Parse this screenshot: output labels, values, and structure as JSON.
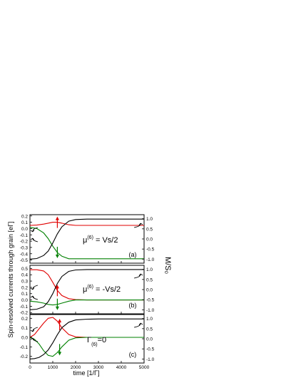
{
  "figure": {
    "ylabel_left": "Spin-resolved currents through grain [eΓ]",
    "ylabel_right": "M/S₀",
    "xlabel": "time [1/Γ]"
  },
  "colors": {
    "up": "#e00000",
    "down": "#008000",
    "magnet": "#000000"
  },
  "chart_data": [
    {
      "type": "line",
      "panel_label": "(a)",
      "annotation": {
        "base": "μ",
        "sup": "(6)",
        "rest": " = Vs/2"
      },
      "xlim": [
        0,
        5000
      ],
      "ylim": [
        -0.55,
        0.22
      ],
      "y2lim": [
        -1.2,
        1.2
      ],
      "xticks": [
        0,
        1000,
        2000,
        3000,
        4000,
        5000
      ],
      "yticks": [
        0.2,
        0.1,
        0.0,
        -0.1,
        -0.2,
        -0.3,
        -0.4,
        -0.5
      ],
      "y2ticks": [
        1.0,
        0.5,
        0.0,
        -0.5,
        -1.0
      ],
      "series": [
        {
          "color_key": "up",
          "axis": "left",
          "x": [
            0,
            300,
            600,
            800,
            1000,
            1200,
            1400,
            1700,
            2000,
            2500,
            5000
          ],
          "y": [
            0.05,
            0.055,
            0.07,
            0.085,
            0.1,
            0.1,
            0.085,
            0.06,
            0.05,
            0.05,
            0.05
          ]
        },
        {
          "color_key": "down",
          "axis": "left",
          "x": [
            0,
            300,
            600,
            800,
            1000,
            1200,
            1400,
            1700,
            2000,
            2500,
            5000
          ],
          "y": [
            0.02,
            0.0,
            -0.07,
            -0.16,
            -0.28,
            -0.38,
            -0.44,
            -0.48,
            -0.48,
            -0.48,
            -0.48
          ]
        },
        {
          "color_key": "magnet",
          "axis": "right",
          "x": [
            0,
            300,
            600,
            800,
            1000,
            1200,
            1400,
            1700,
            2000,
            2500,
            3000,
            5000
          ],
          "y": [
            -1.0,
            -0.97,
            -0.82,
            -0.6,
            -0.2,
            0.25,
            0.6,
            0.88,
            0.96,
            0.98,
            0.98,
            0.98
          ]
        }
      ]
    },
    {
      "type": "line",
      "panel_label": "(b)",
      "annotation": {
        "base": "μ",
        "sup": "(6)",
        "rest": " = -Vs/2"
      },
      "xlim": [
        0,
        5000
      ],
      "ylim": [
        -0.22,
        0.55
      ],
      "y2lim": [
        -1.2,
        1.2
      ],
      "xticks": [
        0,
        1000,
        2000,
        3000,
        4000,
        5000
      ],
      "yticks": [
        0.5,
        0.4,
        0.3,
        0.2,
        0.1,
        0.0,
        -0.1,
        -0.2
      ],
      "y2ticks": [
        1.0,
        0.5,
        0.0,
        -0.5,
        -1.0
      ],
      "series": [
        {
          "color_key": "up",
          "axis": "left",
          "x": [
            0,
            300,
            600,
            800,
            1000,
            1200,
            1400,
            1700,
            2000,
            2500,
            5000
          ],
          "y": [
            0.48,
            0.48,
            0.46,
            0.4,
            0.28,
            0.15,
            0.07,
            0.02,
            0.005,
            0.0,
            0.0
          ]
        },
        {
          "color_key": "down",
          "axis": "left",
          "x": [
            0,
            300,
            600,
            800,
            1000,
            1200,
            1400,
            1700,
            2000,
            2500,
            5000
          ],
          "y": [
            -0.02,
            -0.03,
            -0.05,
            -0.07,
            -0.08,
            -0.07,
            -0.05,
            -0.02,
            0.0,
            0.0,
            0.0
          ]
        },
        {
          "color_key": "magnet",
          "axis": "right",
          "x": [
            0,
            300,
            600,
            800,
            1000,
            1200,
            1400,
            1700,
            2000,
            2500,
            3000,
            5000
          ],
          "y": [
            -1.0,
            -0.97,
            -0.85,
            -0.6,
            -0.2,
            0.3,
            0.65,
            0.9,
            0.97,
            0.99,
            0.99,
            0.99
          ]
        }
      ]
    },
    {
      "type": "line",
      "panel_label": "(c)",
      "annotation": {
        "base": "Γ",
        "sub": "(6)",
        "rest": "=0"
      },
      "xlim": [
        0,
        5000
      ],
      "ylim": [
        -0.27,
        0.24
      ],
      "y2lim": [
        -1.2,
        1.2
      ],
      "xticks": [
        0,
        1000,
        2000,
        3000,
        4000,
        5000
      ],
      "xtick_labels": [
        "0",
        "1000",
        "2000",
        "3000",
        "4000",
        "5000"
      ],
      "yticks": [
        0.2,
        0.1,
        0.0,
        -0.1,
        -0.2
      ],
      "y2ticks": [
        1.0,
        0.5,
        0.0,
        -0.5,
        -1.0
      ],
      "series": [
        {
          "color_key": "up",
          "axis": "left",
          "x": [
            0,
            200,
            400,
            600,
            800,
            1000,
            1200,
            1400,
            1700,
            2000,
            2500,
            5000
          ],
          "y": [
            0.0,
            0.03,
            0.09,
            0.15,
            0.2,
            0.21,
            0.17,
            0.1,
            0.03,
            0.005,
            0.0,
            0.0
          ]
        },
        {
          "color_key": "down",
          "axis": "left",
          "x": [
            0,
            200,
            400,
            600,
            800,
            1000,
            1200,
            1400,
            1700,
            2000,
            2500,
            5000
          ],
          "y": [
            0.0,
            -0.02,
            -0.07,
            -0.14,
            -0.19,
            -0.2,
            -0.16,
            -0.1,
            -0.03,
            -0.005,
            0.0,
            0.0
          ]
        },
        {
          "color_key": "magnet",
          "axis": "right",
          "x": [
            0,
            200,
            400,
            600,
            800,
            1000,
            1200,
            1400,
            1700,
            2000,
            2500,
            3000,
            5000
          ],
          "y": [
            -1.0,
            -0.98,
            -0.92,
            -0.78,
            -0.55,
            -0.2,
            0.2,
            0.55,
            0.82,
            0.93,
            0.97,
            0.98,
            0.98
          ]
        }
      ]
    }
  ]
}
